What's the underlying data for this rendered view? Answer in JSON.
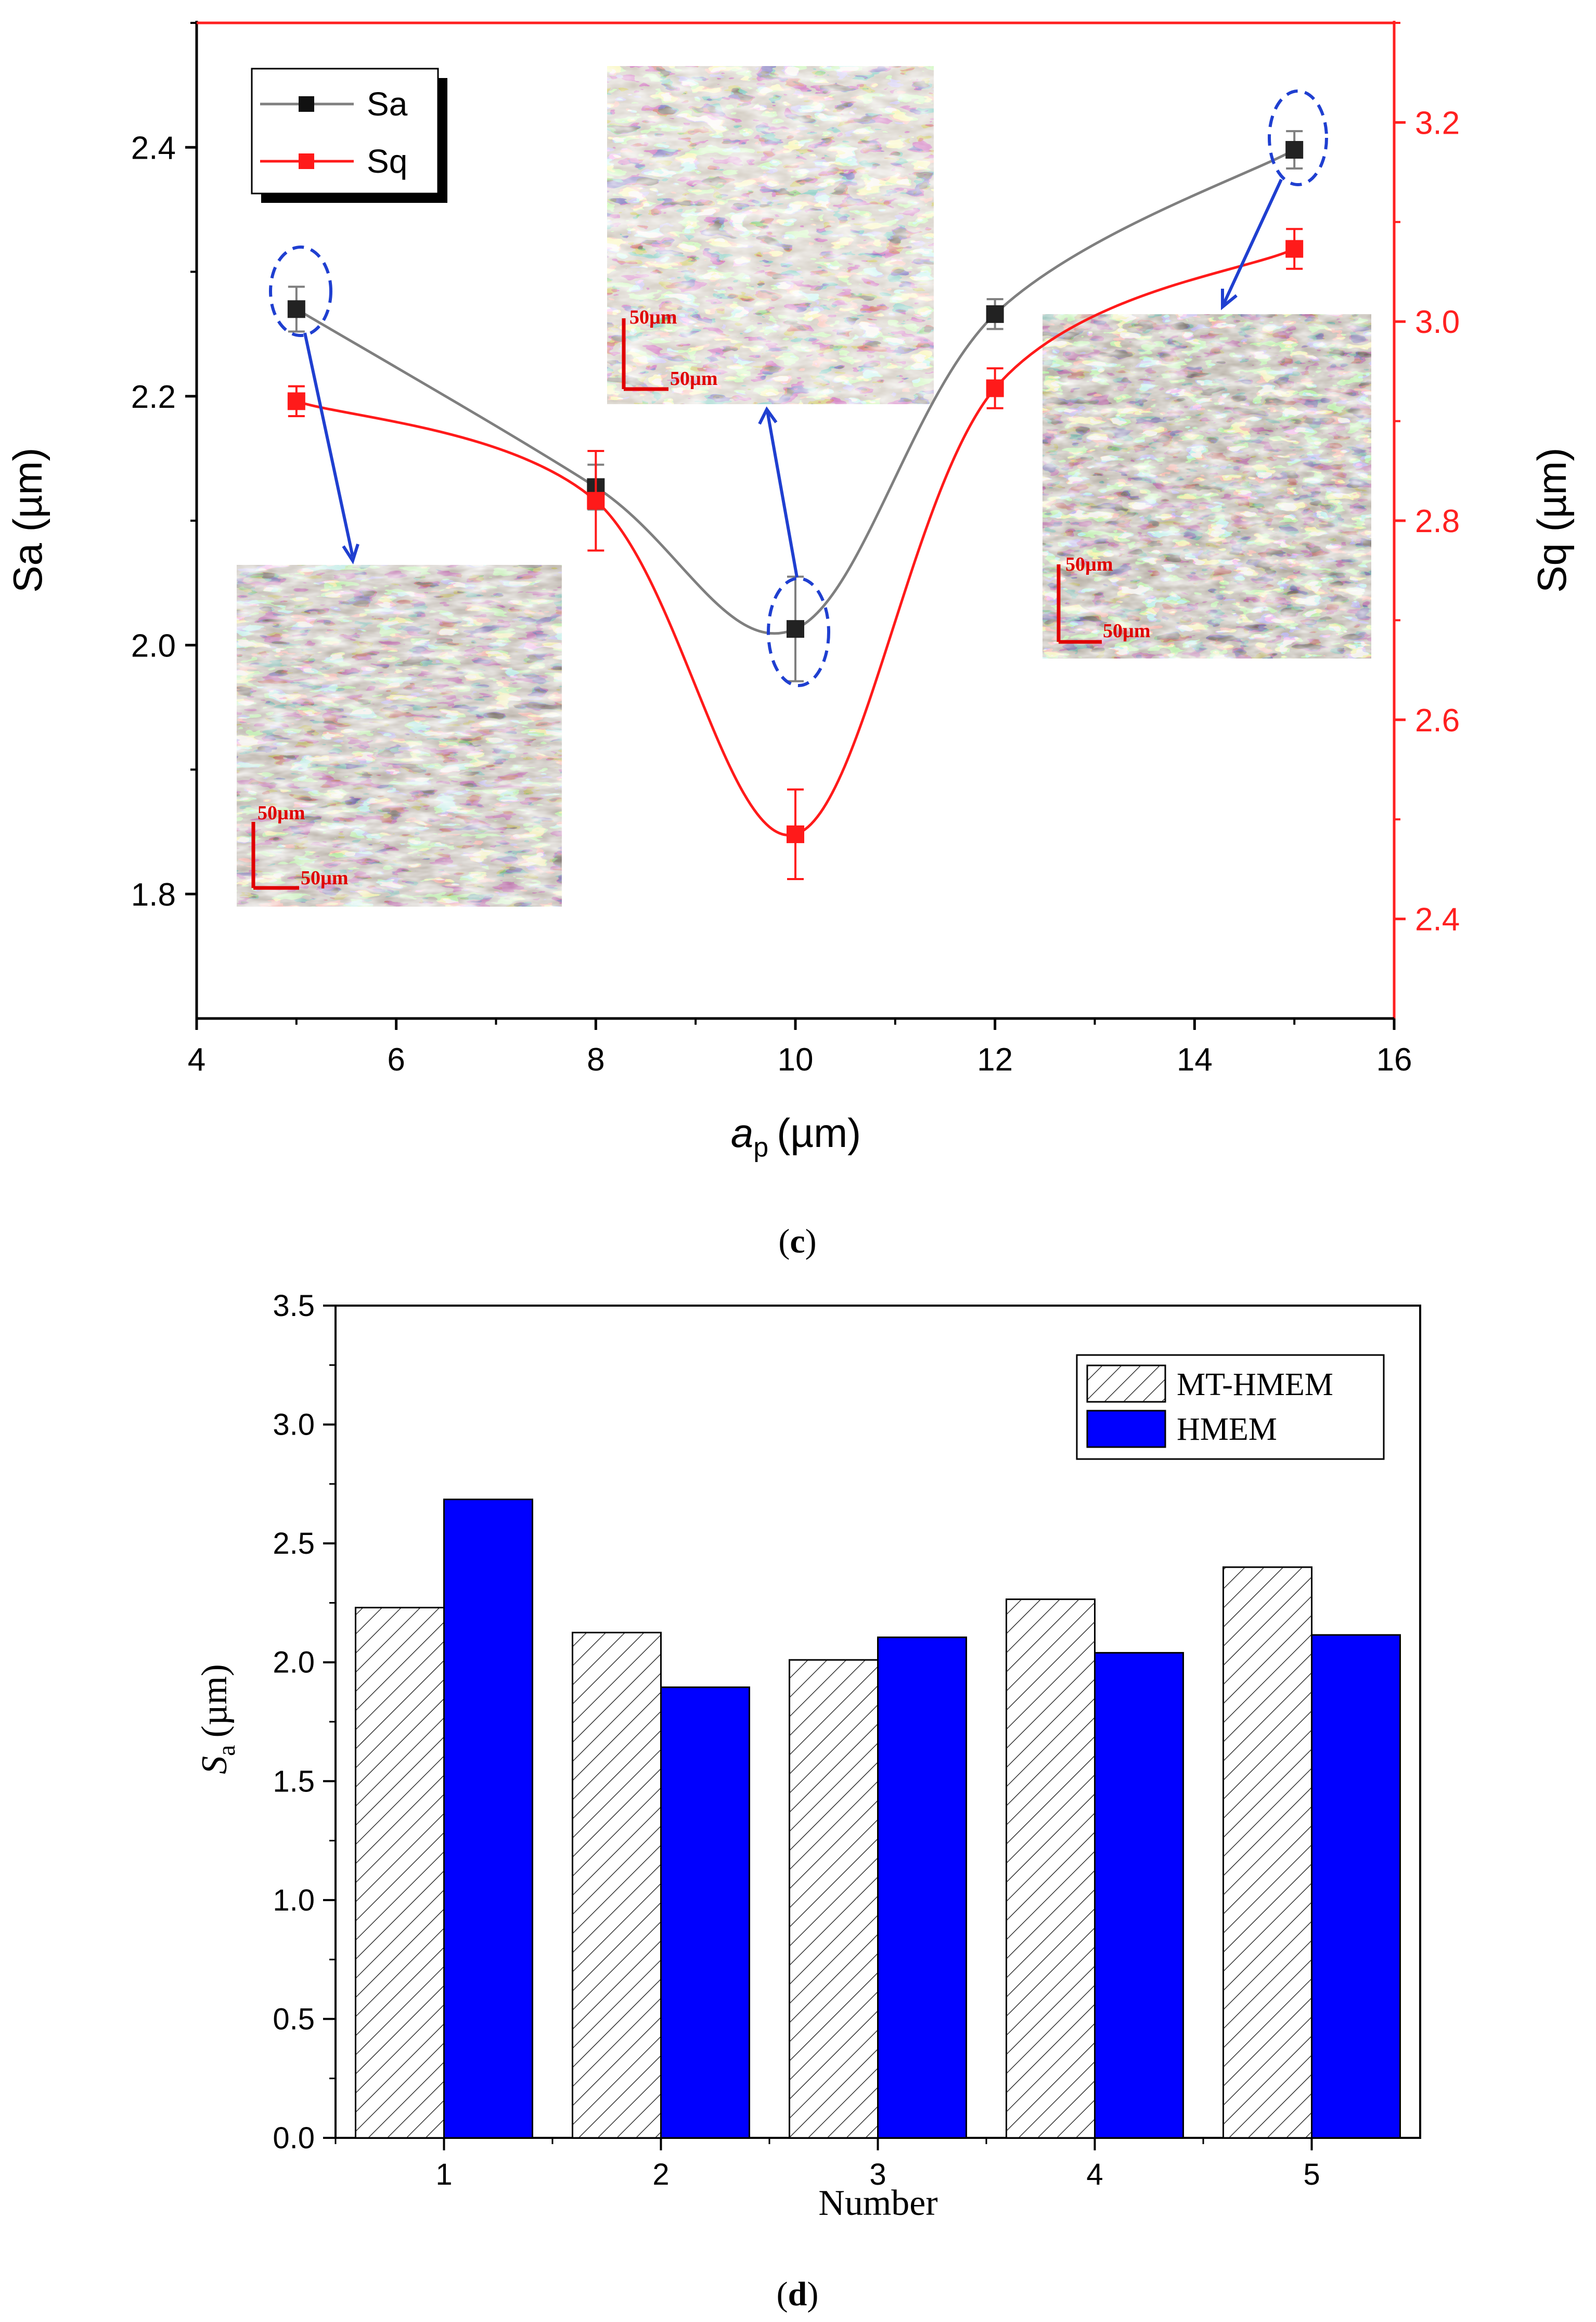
{
  "chart_data": [
    {
      "panel": "c",
      "type": "line",
      "caption_letter": "c",
      "xlabel_main": "a",
      "xlabel_sub": "p",
      "xlabel_unit": "(µm)",
      "ylabel_left": "Sa (µm)",
      "ylabel_right": "Sq (µm)",
      "xlim": [
        4,
        16
      ],
      "ylim_left": [
        1.7,
        2.5
      ],
      "ylim_right": [
        2.3,
        3.3
      ],
      "xticks": [
        4,
        6,
        8,
        10,
        12,
        14,
        16
      ],
      "yticks_left": [
        1.8,
        2.0,
        2.2,
        2.4
      ],
      "yticks_right": [
        2.4,
        2.6,
        2.8,
        3.0,
        3.2
      ],
      "colors": {
        "Sa": "#222222",
        "Sa_line": "#7f7f7f",
        "Sq": "#ff1a1a",
        "axis_right": "#ff2020",
        "annotation": "#1f3fd0"
      },
      "series": [
        {
          "name": "Sa",
          "axis": "left",
          "x": [
            5,
            8,
            10,
            12,
            15
          ],
          "y": [
            2.27,
            2.127,
            2.013,
            2.266,
            2.398
          ],
          "err": [
            0.018,
            0.018,
            0.042,
            0.012,
            0.015
          ]
        },
        {
          "name": "Sq",
          "axis": "right",
          "x": [
            5,
            8,
            10,
            12,
            15
          ],
          "y": [
            2.92,
            2.82,
            2.485,
            2.933,
            3.073
          ],
          "err": [
            0.015,
            0.05,
            0.045,
            0.02,
            0.02
          ]
        }
      ],
      "legend": [
        "Sa",
        "Sq"
      ],
      "legend_position": "top-left",
      "insets": [
        {
          "scale_v": "50µm",
          "scale_h": "50µm",
          "points_to_x": 5
        },
        {
          "scale_v": "50µm",
          "scale_h": "50µm",
          "points_to_x": 10
        },
        {
          "scale_v": "50µm",
          "scale_h": "50µm",
          "points_to_x": 15
        }
      ]
    },
    {
      "panel": "d",
      "type": "bar",
      "caption_letter": "d",
      "xlabel": "Number",
      "ylabel_main": "S",
      "ylabel_sub": "a",
      "ylabel_unit": "(µm)",
      "categories": [
        "1",
        "2",
        "3",
        "4",
        "5"
      ],
      "ylim": [
        0,
        3.5
      ],
      "yticks": [
        "0.0",
        "0.5",
        "1.0",
        "1.5",
        "2.0",
        "2.5",
        "3.0",
        "3.5"
      ],
      "colors": {
        "HMEM": "#0000ff",
        "hatch": "#333333"
      },
      "series": [
        {
          "name": "MT-HMEM",
          "pattern": "hatched",
          "values": [
            2.23,
            2.125,
            2.01,
            2.265,
            2.4
          ]
        },
        {
          "name": "HMEM",
          "pattern": "solid",
          "values": [
            2.685,
            1.895,
            2.105,
            2.04,
            2.115
          ]
        }
      ],
      "legend": [
        "MT-HMEM",
        "HMEM"
      ],
      "legend_position": "top-right"
    }
  ]
}
